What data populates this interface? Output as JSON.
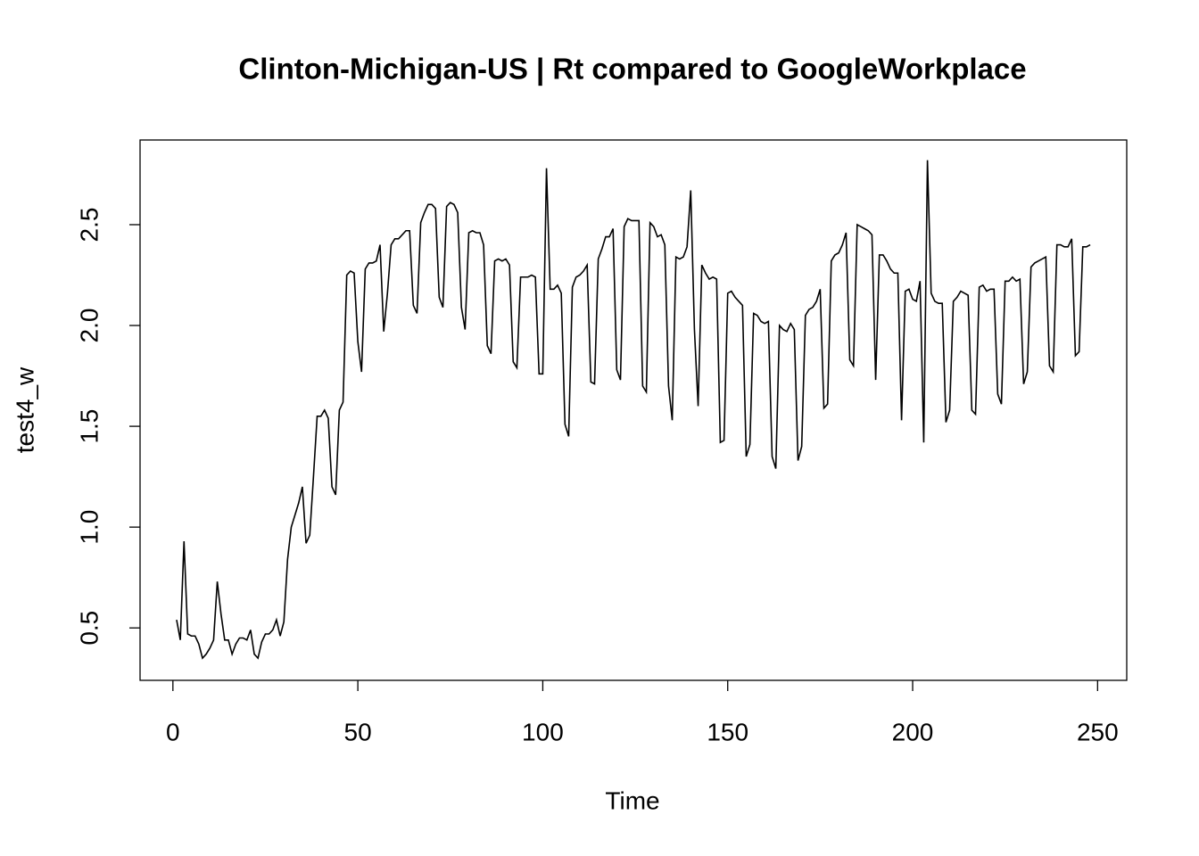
{
  "chart_data": {
    "type": "line",
    "title": "Clinton-Michigan-US | Rt compared to GoogleWorkplace",
    "xlabel": "Time",
    "ylabel": "test4_w",
    "color": "#000000",
    "x": [
      1,
      2,
      3,
      4,
      5,
      6,
      7,
      8,
      9,
      10,
      11,
      12,
      13,
      14,
      15,
      16,
      17,
      18,
      19,
      20,
      21,
      22,
      23,
      24,
      25,
      26,
      27,
      28,
      29,
      30,
      31,
      32,
      33,
      34,
      35,
      36,
      37,
      38,
      39,
      40,
      41,
      42,
      43,
      44,
      45,
      46,
      47,
      48,
      49,
      50,
      51,
      52,
      53,
      54,
      55,
      56,
      57,
      58,
      59,
      60,
      61,
      62,
      63,
      64,
      65,
      66,
      67,
      68,
      69,
      70,
      71,
      72,
      73,
      74,
      75,
      76,
      77,
      78,
      79,
      80,
      81,
      82,
      83,
      84,
      85,
      86,
      87,
      88,
      89,
      90,
      91,
      92,
      93,
      94,
      95,
      96,
      97,
      98,
      99,
      100,
      101,
      102,
      103,
      104,
      105,
      106,
      107,
      108,
      109,
      110,
      111,
      112,
      113,
      114,
      115,
      116,
      117,
      118,
      119,
      120,
      121,
      122,
      123,
      124,
      125,
      126,
      127,
      128,
      129,
      130,
      131,
      132,
      133,
      134,
      135,
      136,
      137,
      138,
      139,
      140,
      141,
      142,
      143,
      144,
      145,
      146,
      147,
      148,
      149,
      150,
      151,
      152,
      153,
      154,
      155,
      156,
      157,
      158,
      159,
      160,
      161,
      162,
      163,
      164,
      165,
      166,
      167,
      168,
      169,
      170,
      171,
      172,
      173,
      174,
      175,
      176,
      177,
      178,
      179,
      180,
      181,
      182,
      183,
      184,
      185,
      186,
      187,
      188,
      189,
      190,
      191,
      192,
      193,
      194,
      195,
      196,
      197,
      198,
      199,
      200,
      201,
      202,
      203,
      204,
      205,
      206,
      207,
      208,
      209,
      210,
      211,
      212,
      213,
      214,
      215,
      216,
      217,
      218,
      219,
      220,
      221,
      222,
      223,
      224,
      225,
      226,
      227,
      228,
      229,
      230,
      231,
      232,
      233,
      234,
      235,
      236,
      237,
      238,
      239,
      240,
      241,
      242,
      243,
      244,
      245,
      246,
      247,
      248
    ],
    "values": [
      0.54,
      0.44,
      0.93,
      0.47,
      0.46,
      0.46,
      0.42,
      0.35,
      0.37,
      0.4,
      0.44,
      0.73,
      0.57,
      0.44,
      0.44,
      0.37,
      0.42,
      0.45,
      0.45,
      0.44,
      0.49,
      0.37,
      0.35,
      0.43,
      0.47,
      0.47,
      0.49,
      0.54,
      0.46,
      0.53,
      0.84,
      1.0,
      1.06,
      1.12,
      1.2,
      0.92,
      0.96,
      1.25,
      1.55,
      1.55,
      1.58,
      1.54,
      1.2,
      1.16,
      1.58,
      1.62,
      2.25,
      2.27,
      2.26,
      1.92,
      1.77,
      2.28,
      2.31,
      2.31,
      2.32,
      2.4,
      1.97,
      2.16,
      2.4,
      2.43,
      2.43,
      2.45,
      2.47,
      2.47,
      2.1,
      2.06,
      2.51,
      2.56,
      2.6,
      2.6,
      2.58,
      2.14,
      2.09,
      2.59,
      2.61,
      2.6,
      2.56,
      2.09,
      1.98,
      2.46,
      2.47,
      2.46,
      2.46,
      2.4,
      1.9,
      1.86,
      2.32,
      2.33,
      2.32,
      2.33,
      2.3,
      1.82,
      1.79,
      2.24,
      2.24,
      2.24,
      2.25,
      2.24,
      1.76,
      1.76,
      2.78,
      2.18,
      2.18,
      2.2,
      2.16,
      1.51,
      1.45,
      2.19,
      2.24,
      2.25,
      2.27,
      2.3,
      1.72,
      1.71,
      2.33,
      2.38,
      2.44,
      2.44,
      2.48,
      1.78,
      1.73,
      2.49,
      2.53,
      2.52,
      2.52,
      2.52,
      1.7,
      1.67,
      2.51,
      2.49,
      2.44,
      2.45,
      2.4,
      1.7,
      1.53,
      2.34,
      2.33,
      2.34,
      2.39,
      2.67,
      1.98,
      1.6,
      2.3,
      2.26,
      2.23,
      2.24,
      2.23,
      1.42,
      1.43,
      2.16,
      2.17,
      2.14,
      2.12,
      2.1,
      1.35,
      1.41,
      2.06,
      2.05,
      2.02,
      2.01,
      2.02,
      1.35,
      1.29,
      2.0,
      1.98,
      1.97,
      2.01,
      1.98,
      1.33,
      1.4,
      2.05,
      2.08,
      2.09,
      2.12,
      2.18,
      1.59,
      1.61,
      2.32,
      2.35,
      2.36,
      2.4,
      2.46,
      1.83,
      1.8,
      2.5,
      2.49,
      2.48,
      2.47,
      2.45,
      1.73,
      2.35,
      2.35,
      2.32,
      2.28,
      2.26,
      2.26,
      1.53,
      2.17,
      2.18,
      2.13,
      2.12,
      2.22,
      1.42,
      2.82,
      2.16,
      2.12,
      2.11,
      2.11,
      1.52,
      1.58,
      2.12,
      2.14,
      2.17,
      2.16,
      2.15,
      1.58,
      1.56,
      2.19,
      2.2,
      2.17,
      2.18,
      2.18,
      1.66,
      1.61,
      2.22,
      2.22,
      2.24,
      2.22,
      2.23,
      1.71,
      1.77,
      2.29,
      2.31,
      2.32,
      2.33,
      2.34,
      1.8,
      1.77,
      2.4,
      2.4,
      2.39,
      2.39,
      2.43,
      1.85,
      1.87,
      2.39,
      2.39,
      2.4
    ],
    "xlim": [
      -8.88,
      257.88
    ],
    "ylim": [
      0.24,
      2.92
    ],
    "xticks": [
      0,
      50,
      100,
      150,
      200,
      250
    ],
    "yticks": [
      0.5,
      {
        "value": 1,
        "label": "1.0"
      },
      1.5,
      {
        "value": 2,
        "label": "2.0"
      },
      2.5
    ]
  }
}
